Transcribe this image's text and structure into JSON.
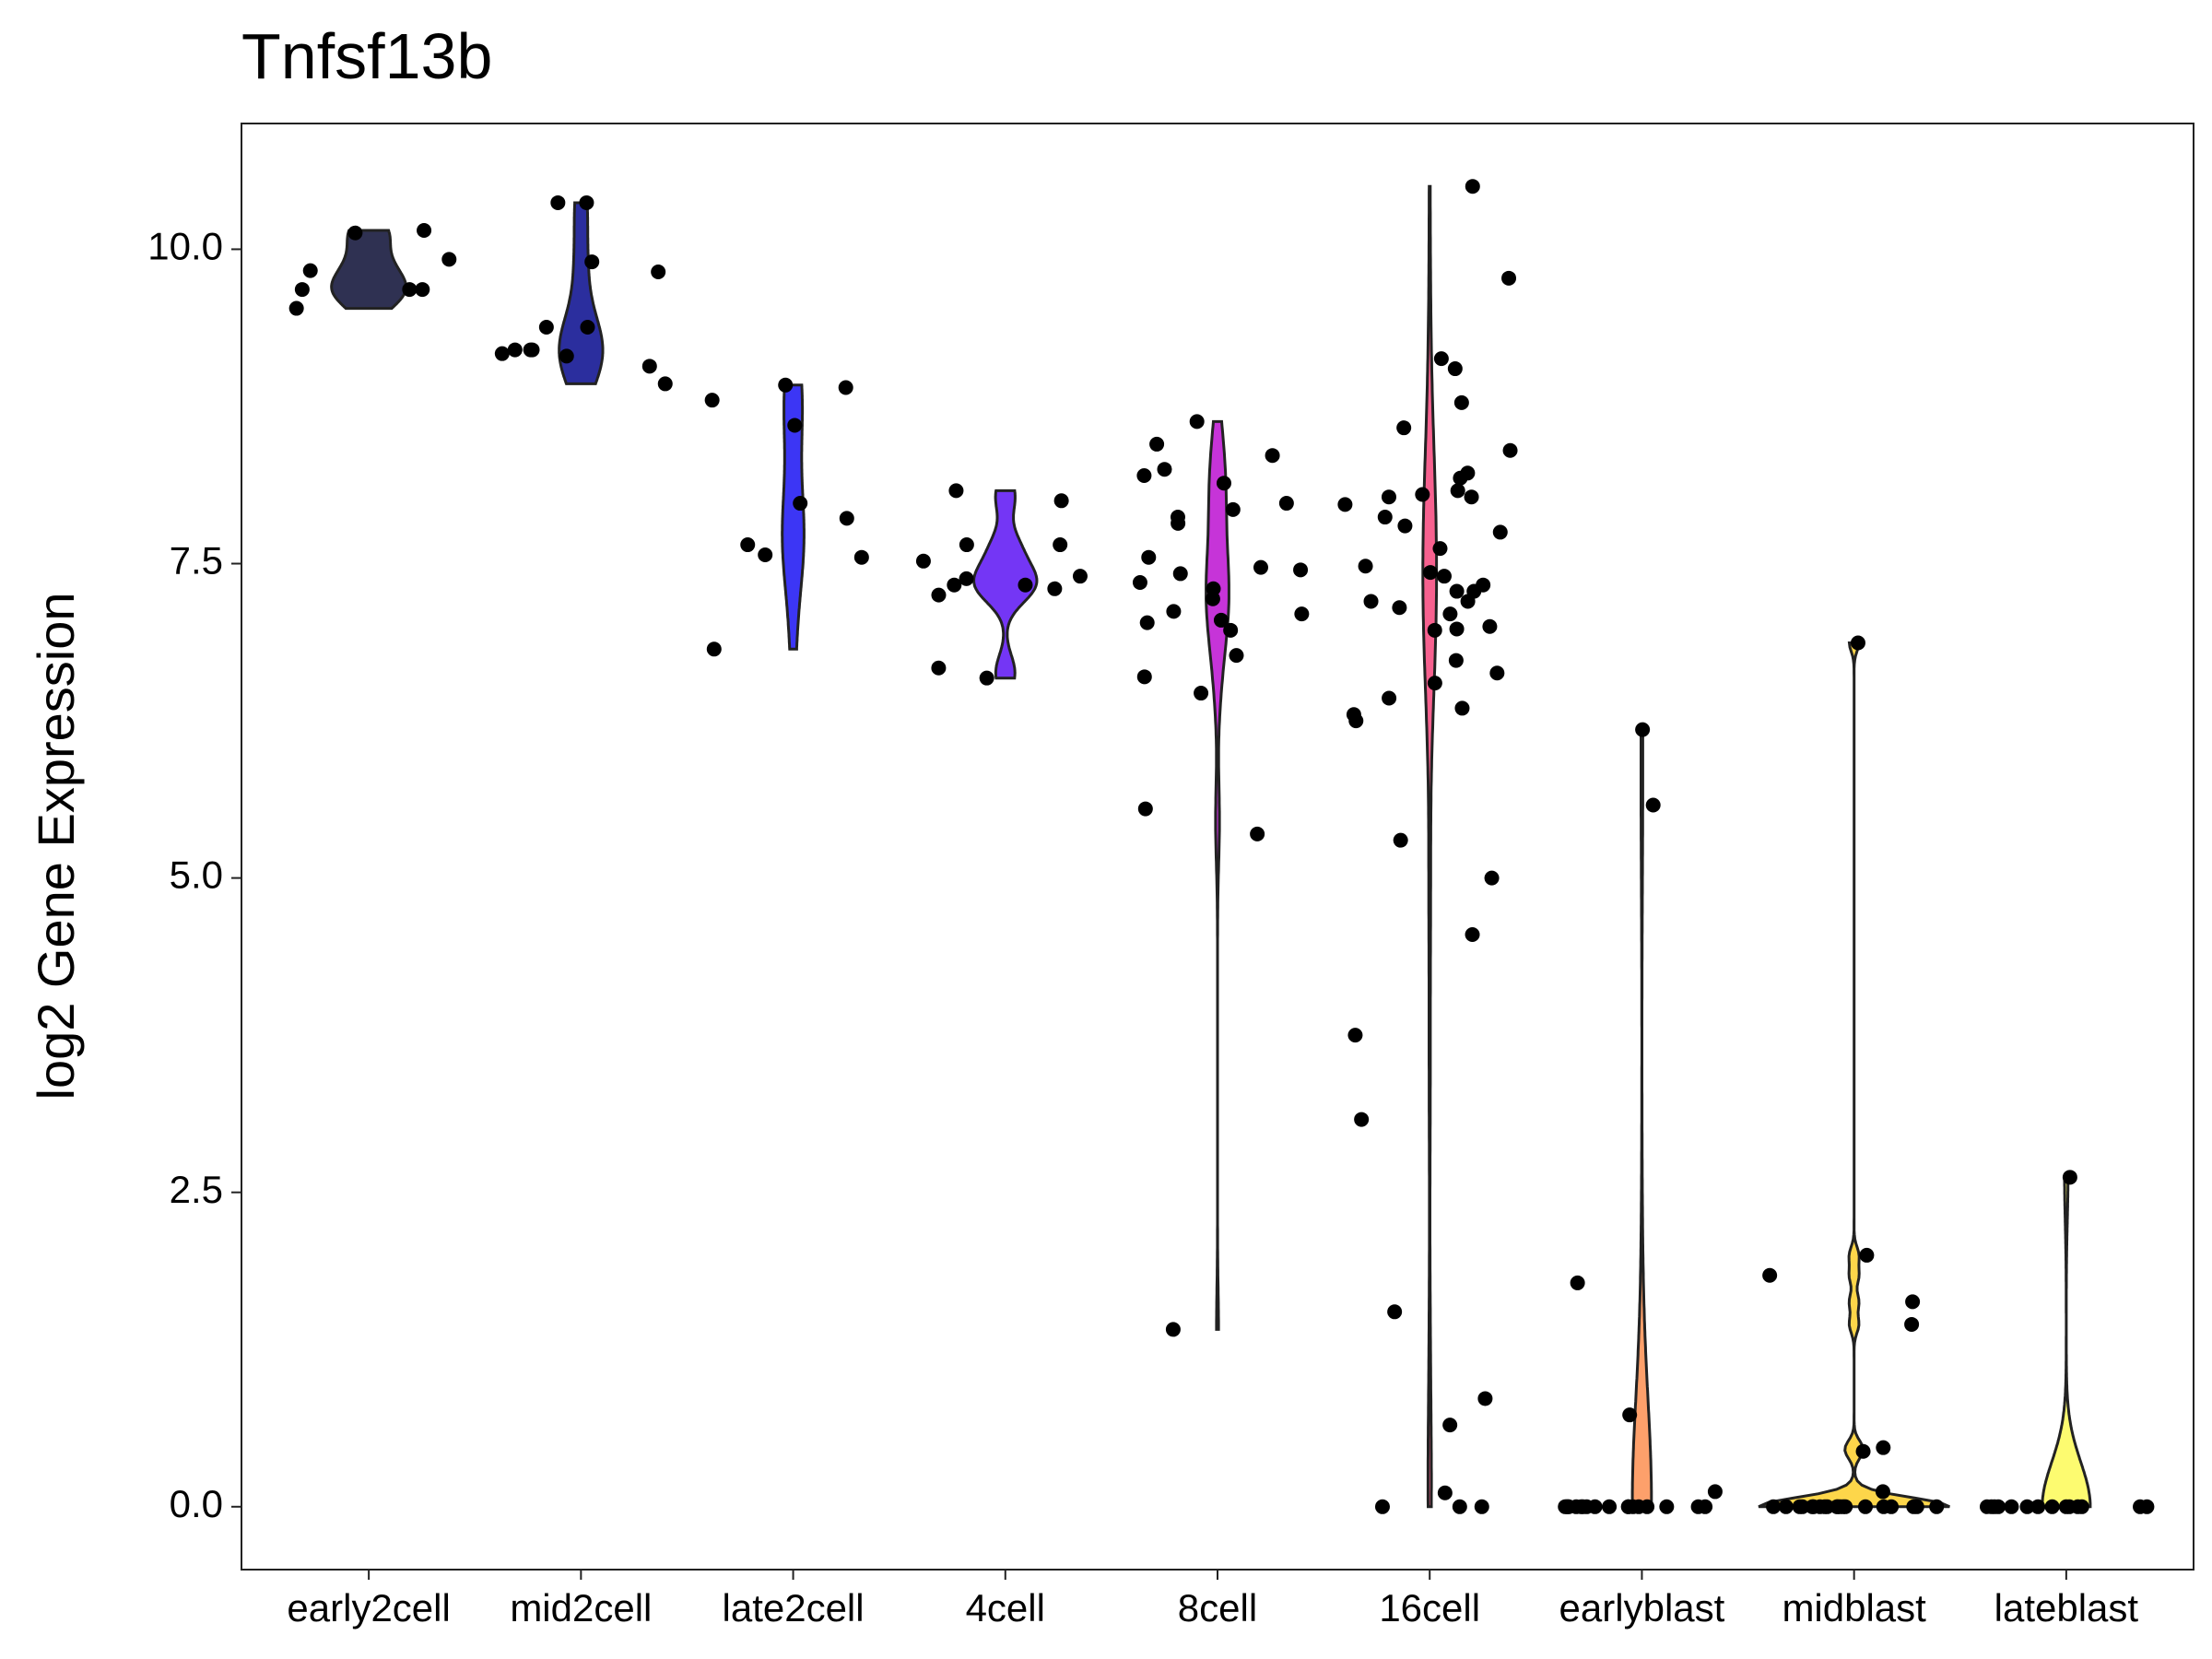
{
  "chart_data": {
    "type": "violin",
    "title": "Tnfsf13b",
    "y_label": "log2 Gene Expression",
    "categories": [
      "early2cell",
      "mid2cell",
      "late2cell",
      "4cell",
      "8cell",
      "16cell",
      "earlyblast",
      "midblast",
      "lateblast"
    ],
    "colors": [
      "#2f3152",
      "#2b2e9e",
      "#3c36f5",
      "#7436f5",
      "#c634d8",
      "#f7618f",
      "#fda06b",
      "#fdd64a",
      "#fdfb70"
    ],
    "values": [
      [
        9.68,
        9.53,
        10.13,
        10.15,
        9.83,
        9.68,
        9.68,
        9.92
      ],
      [
        9.9,
        10.37,
        9.38,
        9.38,
        9.2,
        9.17,
        9.07,
        9.2,
        9.15,
        8.93,
        9.2,
        10.37,
        9.82
      ],
      [
        8.92,
        7.57,
        7.55,
        6.82,
        8.9,
        8.8,
        7.98,
        7.65,
        8.6,
        7.86
      ],
      [
        7.65,
        7.4,
        7.33,
        6.67,
        7.33,
        7.65,
        7.3,
        7.52,
        7.25,
        7.38,
        8.0,
        8.08,
        6.59
      ],
      [
        8.36,
        8.14,
        7.98,
        7.82,
        8.25,
        7.03,
        8.63,
        8.2,
        7.93,
        7.87,
        7.45,
        7.42,
        7.22,
        7.3,
        7.47,
        7.05,
        7.1,
        6.77,
        7.55,
        7.35,
        6.97,
        6.6,
        6.47,
        8.45,
        7.12,
        5.55,
        5.35,
        1.41
      ],
      [
        10.5,
        9.13,
        8.78,
        8.4,
        8.18,
        8.03,
        8.03,
        7.4,
        7.15,
        7.28,
        6.97,
        6.43,
        7.87,
        7.62,
        7.1,
        7.28,
        7.33,
        7.2,
        7.0,
        7.48,
        7.75,
        7.43,
        6.63,
        6.3,
        6.25,
        8.22,
        9.05,
        6.73,
        8.58,
        8.05,
        7.97,
        7.8,
        6.98,
        7.2,
        8.08,
        6.55,
        6.35,
        9.77,
        5.0,
        5.3,
        4.55,
        3.75,
        3.08,
        0.86,
        0.65,
        0.11,
        0,
        1.55,
        0,
        0
      ],
      [
        6.18,
        5.58,
        1.78,
        0.73,
        0.12,
        0,
        0,
        0,
        0,
        0,
        0,
        0,
        0,
        0,
        0,
        0,
        0,
        0,
        0,
        0,
        0,
        0,
        0
      ],
      [
        6.87,
        2.0,
        1.63,
        1.84,
        0.47,
        0.12,
        1.45,
        0.44,
        0,
        0,
        0,
        0,
        0,
        0,
        0,
        0,
        0,
        0,
        0,
        0,
        0,
        0,
        0,
        0,
        0,
        0,
        0,
        0
      ],
      [
        2.62,
        0,
        0,
        0,
        0,
        0,
        0,
        0,
        0,
        0,
        0,
        0,
        0,
        0,
        0
      ]
    ],
    "ylim": [
      -0.5,
      11.0
    ],
    "yticks": [
      {
        "value": 0,
        "label": "0.0"
      },
      {
        "value": 2.5,
        "label": "2.5"
      },
      {
        "value": 5,
        "label": "5.0"
      },
      {
        "value": 7.5,
        "label": "7.5"
      },
      {
        "value": 10,
        "label": "10.0"
      }
    ]
  }
}
